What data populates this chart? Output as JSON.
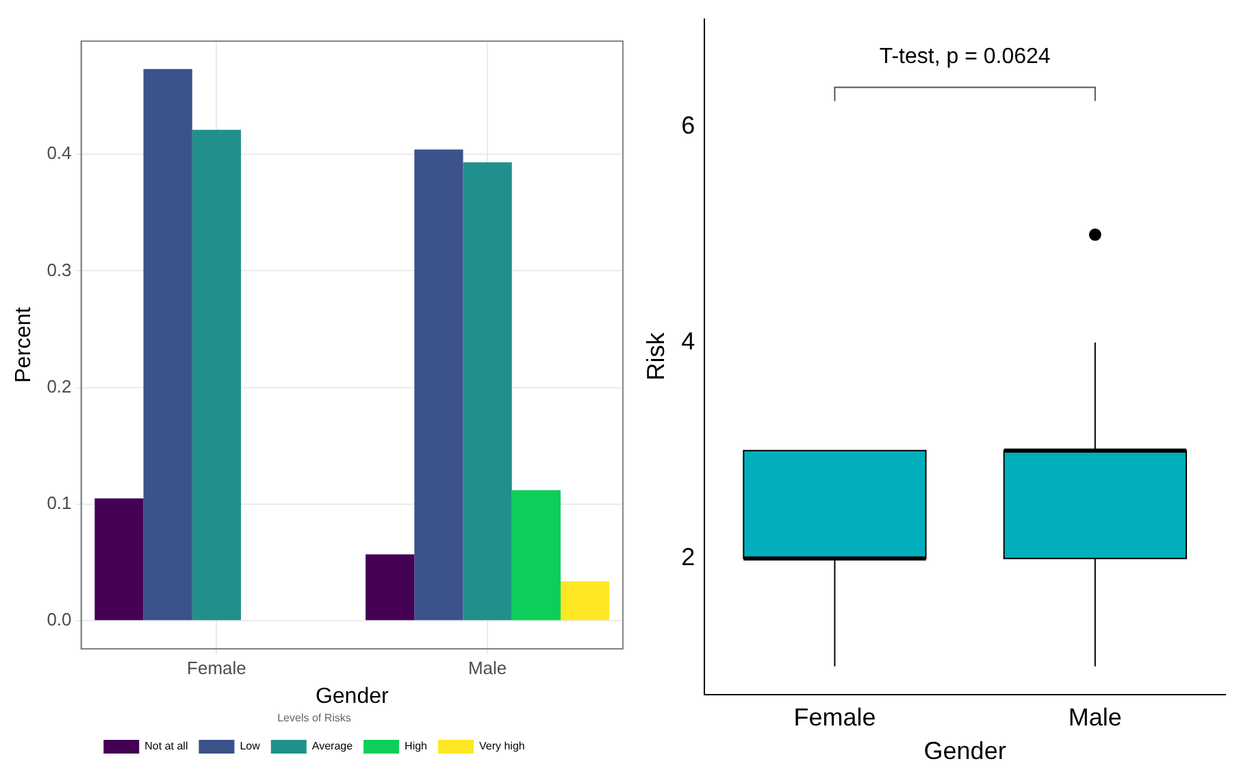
{
  "chart_data": [
    {
      "type": "bar",
      "xlabel": "Gender",
      "ylabel": "Percent",
      "categories": [
        "Female",
        "Male"
      ],
      "series": [
        {
          "name": "Not at all",
          "color": "#440154",
          "values": [
            0.105,
            0.057
          ]
        },
        {
          "name": "Low",
          "color": "#3b528b",
          "values": [
            0.473,
            0.404
          ]
        },
        {
          "name": "Average",
          "color": "#21908c",
          "values": [
            0.421,
            0.393
          ]
        },
        {
          "name": "High",
          "color": "#0bcf58",
          "values": [
            null,
            0.112
          ]
        },
        {
          "name": "Very high",
          "color": "#fde725",
          "values": [
            null,
            0.034
          ]
        }
      ],
      "legend_title": "Levels of Risks",
      "legend": "bottom",
      "ylim": [
        -0.024,
        0.497
      ],
      "yticks": [
        {
          "value": 0,
          "label": "0.0"
        },
        0.1,
        0.2,
        0.3,
        0.4
      ],
      "grid": true
    },
    {
      "type": "box",
      "xlabel": "Gender",
      "ylabel": "Risk",
      "categories": [
        "Female",
        "Male"
      ],
      "color": "#00afbb",
      "boxes": [
        {
          "low": 1,
          "q1": 2,
          "median": 2,
          "q3": 3,
          "high": 3
        },
        {
          "low": 1,
          "q1": 2,
          "median": 3,
          "q3": 3,
          "high": 4,
          "outliers": [
            5
          ]
        }
      ],
      "ylim": [
        0.74,
        7.0
      ],
      "yticks": [
        2,
        4,
        6
      ],
      "grid": false,
      "annotations": [
        "T-test, p = 0.0624"
      ]
    }
  ]
}
